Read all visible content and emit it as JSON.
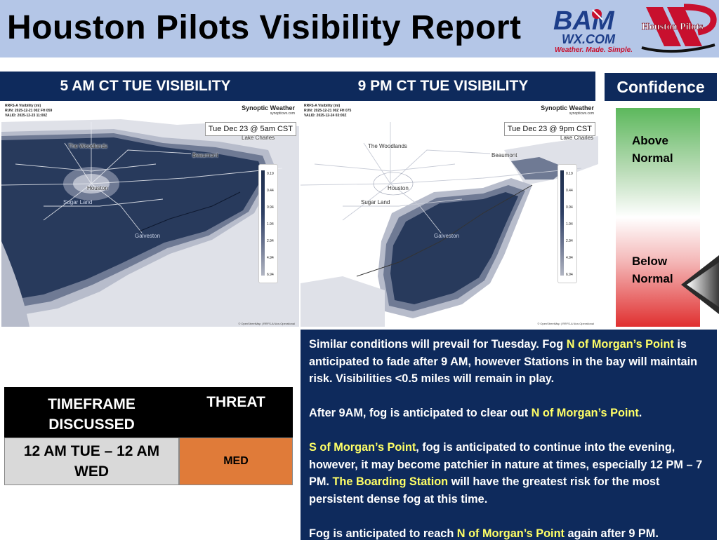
{
  "header": {
    "title": "Houston Pilots Visibility Report",
    "bam_logo": {
      "main": "BAM",
      "sub": "WX.COM",
      "tagline": "Weather. Made. Simple."
    },
    "pilots_logo": "Houston Pilots"
  },
  "panel1": {
    "heading": "5 AM CT TUE VISIBILITY",
    "meta": [
      "RRFS-A Visibility (mi)",
      "RUN: 2025-12-21 00Z FH 059",
      "VALID: 2025-12-23 11:00Z"
    ],
    "brand": "Synoptic Weather",
    "brand_site": "synopticwx.com",
    "date_badge": "Tue Dec 23 @ 5am CST",
    "attribution": "© OpenStreetMap | RRFS-A Non-Operational"
  },
  "panel2": {
    "heading": "9 PM CT TUE VISIBILITY",
    "meta": [
      "RRFS-A Visibility (mi)",
      "RUN: 2025-12-21 00Z FH 075",
      "VALID: 2025-12-24 03:00Z"
    ],
    "brand": "Synoptic Weather",
    "brand_site": "synopticwx.com",
    "date_badge": "Tue Dec 23 @ 9pm CST",
    "attribution": "© OpenStreetMap | RRFS-A Non-Operational"
  },
  "map_labels": {
    "the_woodlands": "The Woodlands",
    "houston": "Houston",
    "sugar_land": "Sugar Land",
    "beaumont": "Beaumont",
    "lake_charles": "Lake Charles",
    "galveston": "Galveston"
  },
  "legend": [
    "0.19",
    "0.44",
    "0.94",
    "1.94",
    "2.94",
    "4.94",
    "6.94"
  ],
  "confidence": {
    "heading": "Confidence",
    "above_line1": "Above",
    "above_line2": "Normal",
    "below_line1": "Below",
    "below_line2": "Normal"
  },
  "threat_table": {
    "col1_header_line1": "TIMEFRAME",
    "col1_header_line2": "DISCUSSED",
    "col2_header": "THREAT",
    "timeframe_line1": "12 AM TUE – 12 AM",
    "timeframe_line2": "WED",
    "threat": "MED"
  },
  "discussion": {
    "p1_a": "Similar conditions will prevail for Tuesday. Fog ",
    "p1_hl": "N of Morgan’s Point",
    "p1_b": " is anticipated to fade after 9 AM, however Stations in the bay will maintain risk. Visibilities <0.5 miles will remain in play.",
    "p2_a": "After 9AM, fog is anticipated to clear out ",
    "p2_hl": "N of Morgan’s Point",
    "p2_b": ".",
    "p3_hl1": "S of Morgan’s Point",
    "p3_a": ", fog is anticipated to continue into the evening, however, it may become patchier in nature at times, especially 12 PM – 7 PM. ",
    "p3_hl2": "The Boarding Station",
    "p3_b": " will have the greatest risk for the most persistent dense fog at this time.",
    "p4_a": "Fog is anticipated to reach ",
    "p4_hl": "N of Morgan’s Point",
    "p4_b": " again after 9 PM."
  },
  "colors": {
    "navy": "#0e2a5c",
    "header_bg": "#b4c6e7",
    "fog_dense": "#1f2f4e",
    "threat_med": "#e07b39",
    "highlight": "#ffff66"
  }
}
